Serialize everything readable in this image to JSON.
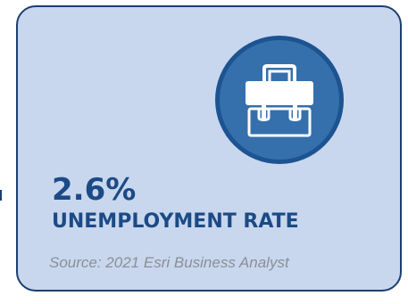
{
  "card": {
    "icon": "briefcase-icon",
    "value": "2.6%",
    "label": "UNEMPLOYMENT RATE",
    "source": "Source: 2021 Esri Business Analyst"
  },
  "colors": {
    "card_background": "#c8d7ee",
    "card_border": "#1b3f6e",
    "icon_circle": "#3570ac",
    "icon_ring": "#1d5391",
    "headline_text": "#1c4a86",
    "source_text": "#8a8f96"
  }
}
